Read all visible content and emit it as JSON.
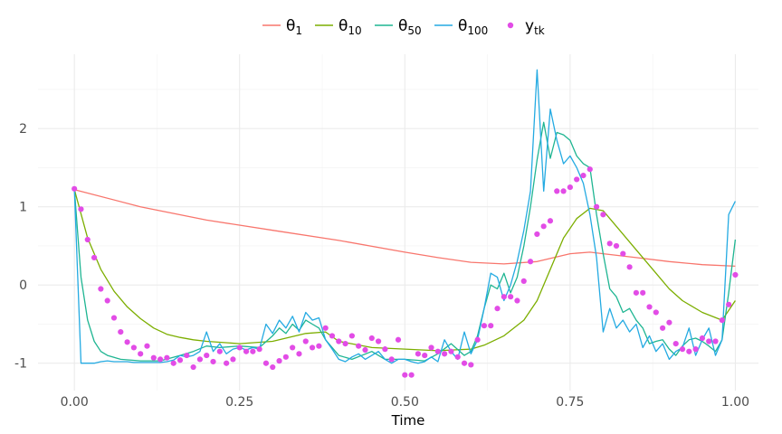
{
  "chart_data": {
    "type": "line",
    "xlabel": "Time",
    "ylabel": "",
    "xlim": [
      -0.055,
      1.035
    ],
    "ylim": [
      -1.35,
      2.95
    ],
    "x_ticks": [
      {
        "value": 0,
        "label": "0.00"
      },
      {
        "value": 0.25,
        "label": "0.25"
      },
      {
        "value": 0.5,
        "label": "0.50"
      },
      {
        "value": 0.75,
        "label": "0.75"
      },
      {
        "value": 1,
        "label": "1.00"
      }
    ],
    "y_ticks": [
      {
        "value": -1,
        "label": "-1"
      },
      {
        "value": 0,
        "label": "0"
      },
      {
        "value": 1,
        "label": "1"
      },
      {
        "value": 2,
        "label": "2"
      }
    ],
    "grid": true,
    "legend_position": "top",
    "series": [
      {
        "name": "θ1",
        "base": "θ",
        "sub": "1",
        "kind": "line",
        "color": "#F8766D",
        "x": [
          0,
          0.1,
          0.2,
          0.3,
          0.4,
          0.5,
          0.55,
          0.6,
          0.65,
          0.7,
          0.75,
          0.78,
          0.8,
          0.85,
          0.9,
          0.95,
          1.0
        ],
        "y": [
          1.22,
          1.0,
          0.83,
          0.7,
          0.57,
          0.42,
          0.35,
          0.29,
          0.27,
          0.3,
          0.4,
          0.42,
          0.4,
          0.35,
          0.3,
          0.26,
          0.24
        ]
      },
      {
        "name": "θ10",
        "base": "θ",
        "sub": "10",
        "kind": "line",
        "color": "#7CAE00",
        "x": [
          0,
          0.02,
          0.04,
          0.06,
          0.08,
          0.1,
          0.12,
          0.14,
          0.16,
          0.18,
          0.2,
          0.25,
          0.3,
          0.35,
          0.38,
          0.4,
          0.45,
          0.5,
          0.55,
          0.6,
          0.62,
          0.65,
          0.68,
          0.7,
          0.72,
          0.74,
          0.76,
          0.78,
          0.8,
          0.82,
          0.85,
          0.88,
          0.9,
          0.92,
          0.95,
          0.98,
          1.0
        ],
        "y": [
          1.22,
          0.6,
          0.2,
          -0.08,
          -0.28,
          -0.43,
          -0.55,
          -0.63,
          -0.67,
          -0.7,
          -0.72,
          -0.75,
          -0.72,
          -0.62,
          -0.6,
          -0.72,
          -0.8,
          -0.82,
          -0.84,
          -0.82,
          -0.77,
          -0.65,
          -0.45,
          -0.2,
          0.2,
          0.6,
          0.85,
          0.98,
          0.95,
          0.75,
          0.45,
          0.15,
          -0.05,
          -0.2,
          -0.35,
          -0.45,
          -0.2
        ]
      },
      {
        "name": "θ50",
        "base": "θ",
        "sub": "50",
        "kind": "line",
        "color": "#00BFC4",
        "stroke": "#1fb592",
        "x": [
          0,
          0.01,
          0.02,
          0.03,
          0.04,
          0.05,
          0.07,
          0.1,
          0.13,
          0.16,
          0.18,
          0.2,
          0.22,
          0.25,
          0.28,
          0.3,
          0.31,
          0.32,
          0.33,
          0.34,
          0.35,
          0.36,
          0.37,
          0.38,
          0.4,
          0.42,
          0.45,
          0.47,
          0.5,
          0.53,
          0.55,
          0.57,
          0.59,
          0.6,
          0.61,
          0.62,
          0.63,
          0.64,
          0.65,
          0.66,
          0.67,
          0.68,
          0.69,
          0.7,
          0.71,
          0.72,
          0.73,
          0.74,
          0.75,
          0.76,
          0.77,
          0.78,
          0.79,
          0.8,
          0.81,
          0.82,
          0.83,
          0.84,
          0.85,
          0.86,
          0.87,
          0.88,
          0.89,
          0.9,
          0.91,
          0.92,
          0.93,
          0.94,
          0.95,
          0.96,
          0.97,
          0.98,
          0.99,
          1.0
        ],
        "y": [
          1.22,
          0.1,
          -0.45,
          -0.72,
          -0.85,
          -0.9,
          -0.95,
          -0.97,
          -0.97,
          -0.9,
          -0.85,
          -0.78,
          -0.8,
          -0.78,
          -0.8,
          -0.65,
          -0.55,
          -0.62,
          -0.5,
          -0.58,
          -0.45,
          -0.5,
          -0.55,
          -0.7,
          -0.9,
          -0.95,
          -0.85,
          -0.95,
          -0.95,
          -0.97,
          -0.88,
          -0.75,
          -0.9,
          -0.85,
          -0.65,
          -0.3,
          0.0,
          -0.05,
          0.15,
          -0.1,
          0.1,
          0.5,
          1.0,
          1.6,
          2.08,
          1.62,
          1.95,
          1.92,
          1.85,
          1.65,
          1.55,
          1.5,
          0.9,
          0.4,
          -0.05,
          -0.15,
          -0.35,
          -0.3,
          -0.45,
          -0.55,
          -0.75,
          -0.72,
          -0.7,
          -0.82,
          -0.9,
          -0.78,
          -0.7,
          -0.68,
          -0.72,
          -0.78,
          -0.85,
          -0.7,
          -0.1,
          0.58
        ]
      },
      {
        "name": "θ100",
        "base": "θ",
        "sub": "100",
        "kind": "line",
        "color": "#00A9E0",
        "stroke": "#24aae2",
        "x": [
          0,
          0.01,
          0.02,
          0.03,
          0.04,
          0.05,
          0.06,
          0.07,
          0.08,
          0.09,
          0.1,
          0.11,
          0.12,
          0.13,
          0.14,
          0.15,
          0.16,
          0.17,
          0.18,
          0.19,
          0.2,
          0.21,
          0.22,
          0.23,
          0.24,
          0.25,
          0.26,
          0.27,
          0.28,
          0.29,
          0.3,
          0.31,
          0.32,
          0.33,
          0.34,
          0.35,
          0.36,
          0.37,
          0.38,
          0.39,
          0.4,
          0.41,
          0.42,
          0.43,
          0.44,
          0.45,
          0.46,
          0.47,
          0.48,
          0.49,
          0.5,
          0.51,
          0.52,
          0.53,
          0.54,
          0.55,
          0.56,
          0.57,
          0.58,
          0.59,
          0.6,
          0.61,
          0.62,
          0.63,
          0.64,
          0.65,
          0.66,
          0.67,
          0.68,
          0.69,
          0.7,
          0.71,
          0.72,
          0.73,
          0.74,
          0.75,
          0.76,
          0.77,
          0.78,
          0.79,
          0.8,
          0.81,
          0.82,
          0.83,
          0.84,
          0.85,
          0.86,
          0.87,
          0.88,
          0.89,
          0.9,
          0.91,
          0.92,
          0.93,
          0.94,
          0.95,
          0.96,
          0.97,
          0.98,
          0.99,
          1.0
        ],
        "y": [
          1.22,
          -1.0,
          -1.0,
          -1.0,
          -0.98,
          -0.97,
          -0.98,
          -0.98,
          -0.98,
          -0.99,
          -0.99,
          -0.99,
          -0.99,
          -0.99,
          -0.98,
          -0.96,
          -0.9,
          -0.92,
          -0.9,
          -0.85,
          -0.6,
          -0.85,
          -0.75,
          -0.88,
          -0.82,
          -0.8,
          -0.83,
          -0.8,
          -0.82,
          -0.5,
          -0.62,
          -0.45,
          -0.55,
          -0.4,
          -0.6,
          -0.35,
          -0.45,
          -0.42,
          -0.7,
          -0.82,
          -0.95,
          -0.98,
          -0.92,
          -0.88,
          -0.95,
          -0.9,
          -0.85,
          -0.95,
          -1.0,
          -0.95,
          -0.95,
          -0.98,
          -1.0,
          -0.98,
          -0.92,
          -0.98,
          -0.7,
          -0.85,
          -0.95,
          -0.6,
          -0.88,
          -0.7,
          -0.3,
          0.15,
          0.1,
          -0.2,
          0.0,
          0.3,
          0.7,
          1.2,
          2.75,
          1.2,
          2.25,
          1.85,
          1.55,
          1.65,
          1.5,
          1.3,
          0.9,
          0.35,
          -0.6,
          -0.3,
          -0.55,
          -0.45,
          -0.6,
          -0.5,
          -0.8,
          -0.65,
          -0.85,
          -0.75,
          -0.95,
          -0.85,
          -0.8,
          -0.55,
          -0.9,
          -0.7,
          -0.55,
          -0.9,
          -0.7,
          0.9,
          1.07
        ]
      },
      {
        "name": "ytk",
        "base": "y",
        "sub": "tk",
        "kind": "point",
        "color": "#E24CE6",
        "x": [
          0,
          0.01,
          0.02,
          0.03,
          0.04,
          0.05,
          0.06,
          0.07,
          0.08,
          0.09,
          0.1,
          0.11,
          0.12,
          0.13,
          0.14,
          0.15,
          0.16,
          0.17,
          0.18,
          0.19,
          0.2,
          0.21,
          0.22,
          0.23,
          0.24,
          0.25,
          0.26,
          0.27,
          0.28,
          0.29,
          0.3,
          0.31,
          0.32,
          0.33,
          0.34,
          0.35,
          0.36,
          0.37,
          0.38,
          0.39,
          0.4,
          0.41,
          0.42,
          0.43,
          0.44,
          0.45,
          0.46,
          0.47,
          0.48,
          0.49,
          0.5,
          0.51,
          0.52,
          0.53,
          0.54,
          0.55,
          0.56,
          0.57,
          0.58,
          0.59,
          0.6,
          0.61,
          0.62,
          0.63,
          0.64,
          0.65,
          0.66,
          0.67,
          0.68,
          0.69,
          0.7,
          0.71,
          0.72,
          0.73,
          0.74,
          0.75,
          0.76,
          0.77,
          0.78,
          0.79,
          0.8,
          0.81,
          0.82,
          0.83,
          0.84,
          0.85,
          0.86,
          0.87,
          0.88,
          0.89,
          0.9,
          0.91,
          0.92,
          0.93,
          0.94,
          0.95,
          0.96,
          0.97,
          0.98,
          0.99,
          1.0
        ],
        "y": [
          1.23,
          0.97,
          0.58,
          0.35,
          -0.05,
          -0.2,
          -0.42,
          -0.6,
          -0.73,
          -0.8,
          -0.88,
          -0.78,
          -0.93,
          -0.95,
          -0.93,
          -1.0,
          -0.96,
          -0.9,
          -1.05,
          -0.95,
          -0.9,
          -0.98,
          -0.85,
          -1.0,
          -0.95,
          -0.8,
          -0.85,
          -0.85,
          -0.82,
          -1.0,
          -1.05,
          -0.97,
          -0.92,
          -0.8,
          -0.88,
          -0.72,
          -0.8,
          -0.78,
          -0.55,
          -0.65,
          -0.72,
          -0.75,
          -0.65,
          -0.78,
          -0.83,
          -0.68,
          -0.72,
          -0.82,
          -0.95,
          -0.7,
          -1.15,
          -1.15,
          -0.88,
          -0.9,
          -0.8,
          -0.85,
          -0.88,
          -0.85,
          -0.92,
          -1.0,
          -1.02,
          -0.7,
          -0.52,
          -0.52,
          -0.3,
          -0.15,
          -0.15,
          -0.2,
          0.05,
          0.3,
          0.65,
          0.75,
          0.82,
          1.2,
          1.2,
          1.25,
          1.35,
          1.4,
          1.48,
          1.0,
          0.9,
          0.53,
          0.5,
          0.4,
          0.23,
          -0.1,
          -0.1,
          -0.28,
          -0.35,
          -0.55,
          -0.48,
          -0.75,
          -0.82,
          -0.85,
          -0.82,
          -0.68,
          -0.72,
          -0.72,
          -0.45,
          -0.25,
          0.13
        ]
      }
    ]
  }
}
